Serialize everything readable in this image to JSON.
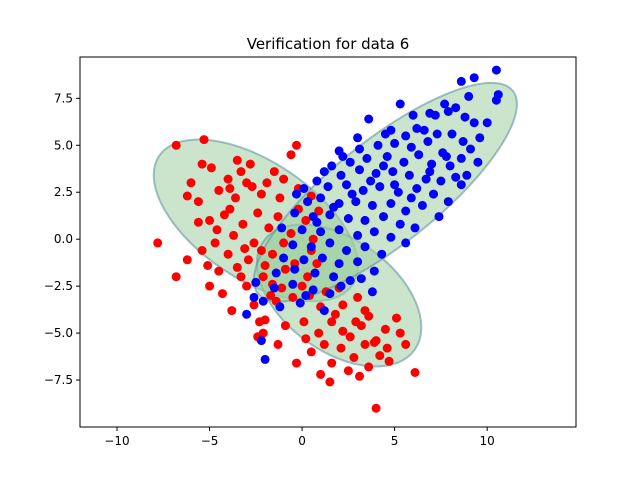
{
  "chart_data": {
    "type": "scatter",
    "title": "Verification for data 6",
    "xlabel": "",
    "ylabel": "",
    "xlim": [
      -12,
      14.8
    ],
    "ylim": [
      -10,
      9.7
    ],
    "xticks": [
      -10,
      -5,
      0,
      5,
      10
    ],
    "yticks": [
      -7.5,
      -5.0,
      -2.5,
      0.0,
      2.5,
      5.0,
      7.5
    ],
    "ytick_labels": [
      "−7.5",
      "−5.0",
      "−2.5",
      "0.0",
      "2.5",
      "5.0",
      "7.5"
    ],
    "xtick_labels": [
      "−10",
      "−5",
      "0",
      "5",
      "10"
    ],
    "grid": false,
    "legend": "none",
    "colors": {
      "class_a": "#ff0000",
      "class_b": "#0000ff",
      "ellipse_fill": "#9fcfa0",
      "ellipse_edge": "#5a8f9a"
    },
    "ellipses": [
      {
        "center": [
          -2.5,
          1.0
        ],
        "width": 12.5,
        "height": 6.3,
        "angle": -33
      },
      {
        "center": [
          2.0,
          -3.0
        ],
        "width": 10.0,
        "height": 6.0,
        "angle": -35
      },
      {
        "center": [
          4.5,
          2.5
        ],
        "width": 17.5,
        "height": 5.6,
        "angle": 38
      }
    ],
    "series": [
      {
        "color": "red",
        "points": [
          [
            -6.8,
            5.0
          ],
          [
            -5.3,
            5.3
          ],
          [
            -3.5,
            4.2
          ],
          [
            -4.0,
            3.2
          ],
          [
            -2.8,
            4.0
          ],
          [
            -1.5,
            3.6
          ],
          [
            -0.6,
            4.5
          ],
          [
            -0.3,
            5.0
          ],
          [
            -6.0,
            3.0
          ],
          [
            -5.6,
            2.0
          ],
          [
            -4.5,
            2.6
          ],
          [
            -3.9,
            1.6
          ],
          [
            -2.2,
            2.4
          ],
          [
            -1.2,
            2.2
          ],
          [
            -0.2,
            1.6
          ],
          [
            0.5,
            2.3
          ],
          [
            -4.6,
            0.5
          ],
          [
            -3.2,
            0.8
          ],
          [
            -2.6,
            -0.2
          ],
          [
            -1.8,
            0.6
          ],
          [
            -0.6,
            0.3
          ],
          [
            0.6,
            0.0
          ],
          [
            -4.0,
            -0.8
          ],
          [
            -3.5,
            -1.5
          ],
          [
            -2.9,
            -1.1
          ],
          [
            -1.6,
            -0.8
          ],
          [
            -0.4,
            -1.3
          ],
          [
            0.5,
            -0.6
          ],
          [
            -3.0,
            -2.5
          ],
          [
            -2.1,
            -2.0
          ],
          [
            -1.1,
            -2.6
          ],
          [
            0.3,
            -2.0
          ],
          [
            -7.8,
            -0.2
          ],
          [
            -6.8,
            -2.0
          ],
          [
            -5.1,
            -1.4
          ],
          [
            -4.3,
            -2.9
          ],
          [
            -2.6,
            -3.5
          ],
          [
            -1.4,
            -3.3
          ],
          [
            0.4,
            -3.0
          ],
          [
            1.3,
            -2.8
          ],
          [
            2.2,
            -3.5
          ],
          [
            3.0,
            -3.1
          ],
          [
            3.6,
            -4.1
          ],
          [
            1.6,
            -4.4
          ],
          [
            0.9,
            -5.0
          ],
          [
            2.6,
            -5.2
          ],
          [
            3.4,
            -5.6
          ],
          [
            4.5,
            -4.8
          ],
          [
            5.3,
            -5.0
          ],
          [
            0.5,
            -6.0
          ],
          [
            1.6,
            -6.6
          ],
          [
            2.8,
            -6.3
          ],
          [
            3.6,
            -6.8
          ],
          [
            4.7,
            -6.5
          ],
          [
            1.0,
            -7.2
          ],
          [
            2.5,
            -7.0
          ],
          [
            1.5,
            -7.6
          ],
          [
            3.1,
            -7.3
          ],
          [
            4.2,
            -6.2
          ],
          [
            6.1,
            -7.1
          ],
          [
            4.0,
            -9.0
          ],
          [
            -1.3,
            -5.6
          ],
          [
            -0.3,
            -6.6
          ],
          [
            -2.4,
            -5.2
          ],
          [
            -5.0,
            -2.5
          ],
          [
            -3.8,
            -3.8
          ],
          [
            -2.0,
            -4.3
          ],
          [
            -0.9,
            -4.6
          ],
          [
            0.1,
            -4.4
          ],
          [
            2.1,
            -5.8
          ],
          [
            3.9,
            -5.5
          ],
          [
            5.6,
            -5.6
          ],
          [
            -5.4,
            4.0
          ],
          [
            -4.9,
            3.8
          ],
          [
            -3.0,
            3.0
          ],
          [
            -1.9,
            3.0
          ],
          [
            -6.2,
            2.3
          ],
          [
            -5.0,
            1.0
          ],
          [
            -3.6,
            2.2
          ],
          [
            -2.4,
            1.4
          ],
          [
            -1.3,
            1.2
          ],
          [
            0.2,
            1.0
          ],
          [
            -4.7,
            -0.2
          ],
          [
            -3.7,
            0.2
          ],
          [
            -2.2,
            -0.6
          ],
          [
            -1.0,
            -0.2
          ],
          [
            0.8,
            -1.3
          ],
          [
            -4.5,
            -1.7
          ],
          [
            -3.3,
            -2.0
          ],
          [
            -2.0,
            -1.4
          ],
          [
            -0.9,
            -1.6
          ],
          [
            1.0,
            -3.6
          ],
          [
            2.0,
            -2.6
          ],
          [
            -1.7,
            -3.0
          ],
          [
            -0.5,
            -3.1
          ],
          [
            1.8,
            -4.0
          ],
          [
            2.9,
            -4.4
          ],
          [
            4.0,
            -5.4
          ],
          [
            -6.2,
            -1.1
          ],
          [
            -5.4,
            -0.6
          ],
          [
            -3.3,
            3.6
          ],
          [
            -1.0,
            3.2
          ],
          [
            -0.2,
            2.7
          ],
          [
            0.9,
            1.5
          ],
          [
            -2.7,
            2.8
          ],
          [
            -3.9,
            2.7
          ],
          [
            -2.3,
            -4.4
          ],
          [
            -2.1,
            -5.0
          ],
          [
            0.2,
            -5.3
          ],
          [
            1.2,
            -5.6
          ],
          [
            2.2,
            -4.9
          ],
          [
            3.2,
            -4.6
          ],
          [
            4.6,
            -5.8
          ],
          [
            5.1,
            -4.2
          ],
          [
            3.4,
            -3.8
          ],
          [
            -5.6,
            0.9
          ],
          [
            -4.2,
            1.3
          ],
          [
            -3.1,
            -0.5
          ],
          [
            -1.6,
            -2.4
          ],
          [
            0.0,
            -2.5
          ]
        ]
      },
      {
        "color": "blue",
        "points": [
          [
            10.5,
            9.0
          ],
          [
            9.3,
            8.6
          ],
          [
            8.6,
            8.4
          ],
          [
            10.6,
            7.7
          ],
          [
            10.5,
            7.4
          ],
          [
            5.3,
            7.2
          ],
          [
            9.0,
            7.6
          ],
          [
            6.0,
            6.6
          ],
          [
            6.9,
            6.7
          ],
          [
            7.2,
            6.6
          ],
          [
            7.9,
            6.8
          ],
          [
            8.8,
            6.5
          ],
          [
            9.3,
            6.2
          ],
          [
            10.0,
            6.2
          ],
          [
            3.6,
            6.4
          ],
          [
            4.8,
            5.8
          ],
          [
            5.6,
            5.5
          ],
          [
            6.6,
            5.8
          ],
          [
            7.3,
            5.6
          ],
          [
            8.1,
            5.6
          ],
          [
            8.7,
            5.2
          ],
          [
            2.0,
            4.7
          ],
          [
            3.1,
            4.8
          ],
          [
            4.1,
            5.0
          ],
          [
            5.0,
            5.1
          ],
          [
            5.9,
            4.9
          ],
          [
            6.8,
            5.2
          ],
          [
            7.6,
            4.6
          ],
          [
            8.6,
            4.3
          ],
          [
            9.1,
            4.8
          ],
          [
            2.6,
            4.1
          ],
          [
            3.5,
            4.3
          ],
          [
            4.6,
            4.4
          ],
          [
            5.5,
            4.1
          ],
          [
            6.3,
            4.5
          ],
          [
            7.0,
            4.0
          ],
          [
            8.0,
            3.9
          ],
          [
            8.9,
            3.4
          ],
          [
            1.2,
            3.6
          ],
          [
            2.1,
            3.4
          ],
          [
            3.1,
            3.7
          ],
          [
            4.0,
            3.5
          ],
          [
            4.9,
            3.6
          ],
          [
            5.8,
            3.4
          ],
          [
            6.7,
            3.2
          ],
          [
            7.5,
            3.1
          ],
          [
            8.6,
            2.9
          ],
          [
            1.4,
            2.8
          ],
          [
            2.4,
            2.9
          ],
          [
            3.3,
            2.6
          ],
          [
            4.2,
            2.8
          ],
          [
            5.2,
            2.5
          ],
          [
            6.2,
            2.7
          ],
          [
            7.1,
            2.4
          ],
          [
            7.9,
            2.0
          ],
          [
            0.3,
            2.0
          ],
          [
            1.0,
            2.2
          ],
          [
            2.0,
            1.9
          ],
          [
            2.9,
            2.0
          ],
          [
            3.8,
            1.8
          ],
          [
            4.8,
            1.9
          ],
          [
            5.6,
            1.5
          ],
          [
            6.5,
            1.8
          ],
          [
            7.4,
            1.2
          ],
          [
            -0.4,
            1.4
          ],
          [
            0.6,
            1.2
          ],
          [
            1.5,
            1.3
          ],
          [
            2.5,
            1.1
          ],
          [
            3.4,
            1.0
          ],
          [
            4.4,
            1.2
          ],
          [
            5.3,
            0.8
          ],
          [
            6.1,
            0.6
          ],
          [
            -1.1,
            0.6
          ],
          [
            0.0,
            0.5
          ],
          [
            1.0,
            0.4
          ],
          [
            2.0,
            0.5
          ],
          [
            3.0,
            0.2
          ],
          [
            3.9,
            0.4
          ],
          [
            4.8,
            0.1
          ],
          [
            5.6,
            -0.2
          ],
          [
            -0.5,
            -0.3
          ],
          [
            0.5,
            -0.4
          ],
          [
            1.5,
            -0.2
          ],
          [
            2.4,
            -0.6
          ],
          [
            3.4,
            -0.4
          ],
          [
            4.3,
            -0.8
          ],
          [
            -1.0,
            -1.0
          ],
          [
            0.1,
            -1.1
          ],
          [
            1.1,
            -1.0
          ],
          [
            2.0,
            -1.3
          ],
          [
            3.0,
            -1.2
          ],
          [
            3.9,
            -1.7
          ],
          [
            -1.4,
            -1.8
          ],
          [
            -0.4,
            -1.6
          ],
          [
            0.7,
            -1.8
          ],
          [
            1.7,
            -2.0
          ],
          [
            2.6,
            -2.2
          ],
          [
            3.8,
            -2.8
          ],
          [
            -2.5,
            -2.3
          ],
          [
            -1.5,
            -2.6
          ],
          [
            -0.5,
            -2.4
          ],
          [
            0.6,
            -2.7
          ],
          [
            1.5,
            -2.9
          ],
          [
            -2.1,
            -3.3
          ],
          [
            -1.2,
            -3.6
          ],
          [
            -0.1,
            -3.4
          ],
          [
            -3.0,
            -4.0
          ],
          [
            -2.6,
            -3.1
          ],
          [
            -2.2,
            -5.4
          ],
          [
            -2.0,
            -6.4
          ],
          [
            1.2,
            -3.8
          ],
          [
            6.2,
            5.9
          ],
          [
            7.7,
            7.2
          ],
          [
            8.3,
            7.0
          ],
          [
            9.6,
            5.4
          ],
          [
            4.4,
            3.9
          ],
          [
            3.7,
            3.1
          ],
          [
            2.7,
            2.4
          ],
          [
            1.7,
            1.7
          ],
          [
            0.8,
            0.9
          ],
          [
            5.0,
            2.9
          ],
          [
            5.9,
            2.2
          ],
          [
            6.9,
            3.6
          ],
          [
            7.8,
            4.4
          ],
          [
            8.3,
            3.3
          ],
          [
            9.5,
            4.1
          ],
          [
            4.5,
            5.6
          ],
          [
            3.0,
            5.4
          ],
          [
            2.2,
            4.4
          ],
          [
            1.6,
            3.9
          ],
          [
            0.8,
            3.1
          ],
          [
            0.1,
            2.7
          ],
          [
            -0.3,
            2.4
          ],
          [
            3.2,
            -2.1
          ],
          [
            2.1,
            -2.5
          ],
          [
            0.2,
            -3.0
          ]
        ]
      }
    ]
  }
}
